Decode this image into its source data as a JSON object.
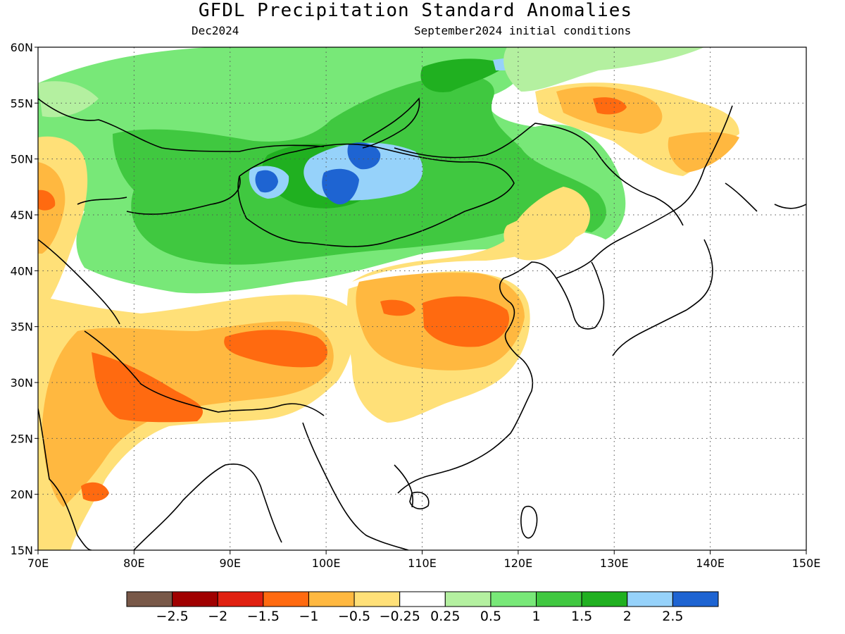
{
  "header": {
    "title": "GFDL Precipitation Standard Anomalies",
    "valid_month": "Dec2024",
    "initial_conditions": "September2024 initial conditions"
  },
  "map": {
    "lon_range": [
      70,
      150
    ],
    "lat_range": [
      15,
      60
    ],
    "lon_ticks": [
      "70E",
      "80E",
      "90E",
      "100E",
      "110E",
      "120E",
      "130E",
      "140E",
      "150E"
    ],
    "lat_ticks": [
      "15N",
      "20N",
      "25N",
      "30N",
      "35N",
      "40N",
      "45N",
      "50N",
      "55N",
      "60N"
    ],
    "gridlines": "dotted"
  },
  "colorbar": {
    "colors": [
      "#785848",
      "#a00000",
      "#e02010",
      "#ff6a10",
      "#ffb840",
      "#ffe078",
      "#ffffff",
      "#b4f0a0",
      "#78e878",
      "#40c840",
      "#20b020",
      "#96d2fa",
      "#1e64d2"
    ],
    "labels": [
      "−2.5",
      "−2",
      "−1.5",
      "−1",
      "−0.5",
      "−0.25",
      "0.25",
      "0.5",
      "1",
      "1.5",
      "2",
      "2.5"
    ]
  },
  "palette": {
    "neg2": "#ff6a10",
    "neg1": "#ffb840",
    "neg05": "#ffe078",
    "pos05": "#b4f0a0",
    "pos1": "#78e878",
    "pos15": "#40c840",
    "pos2": "#20b020",
    "pos25": "#96d2fa",
    "pos3": "#1e64d2"
  }
}
